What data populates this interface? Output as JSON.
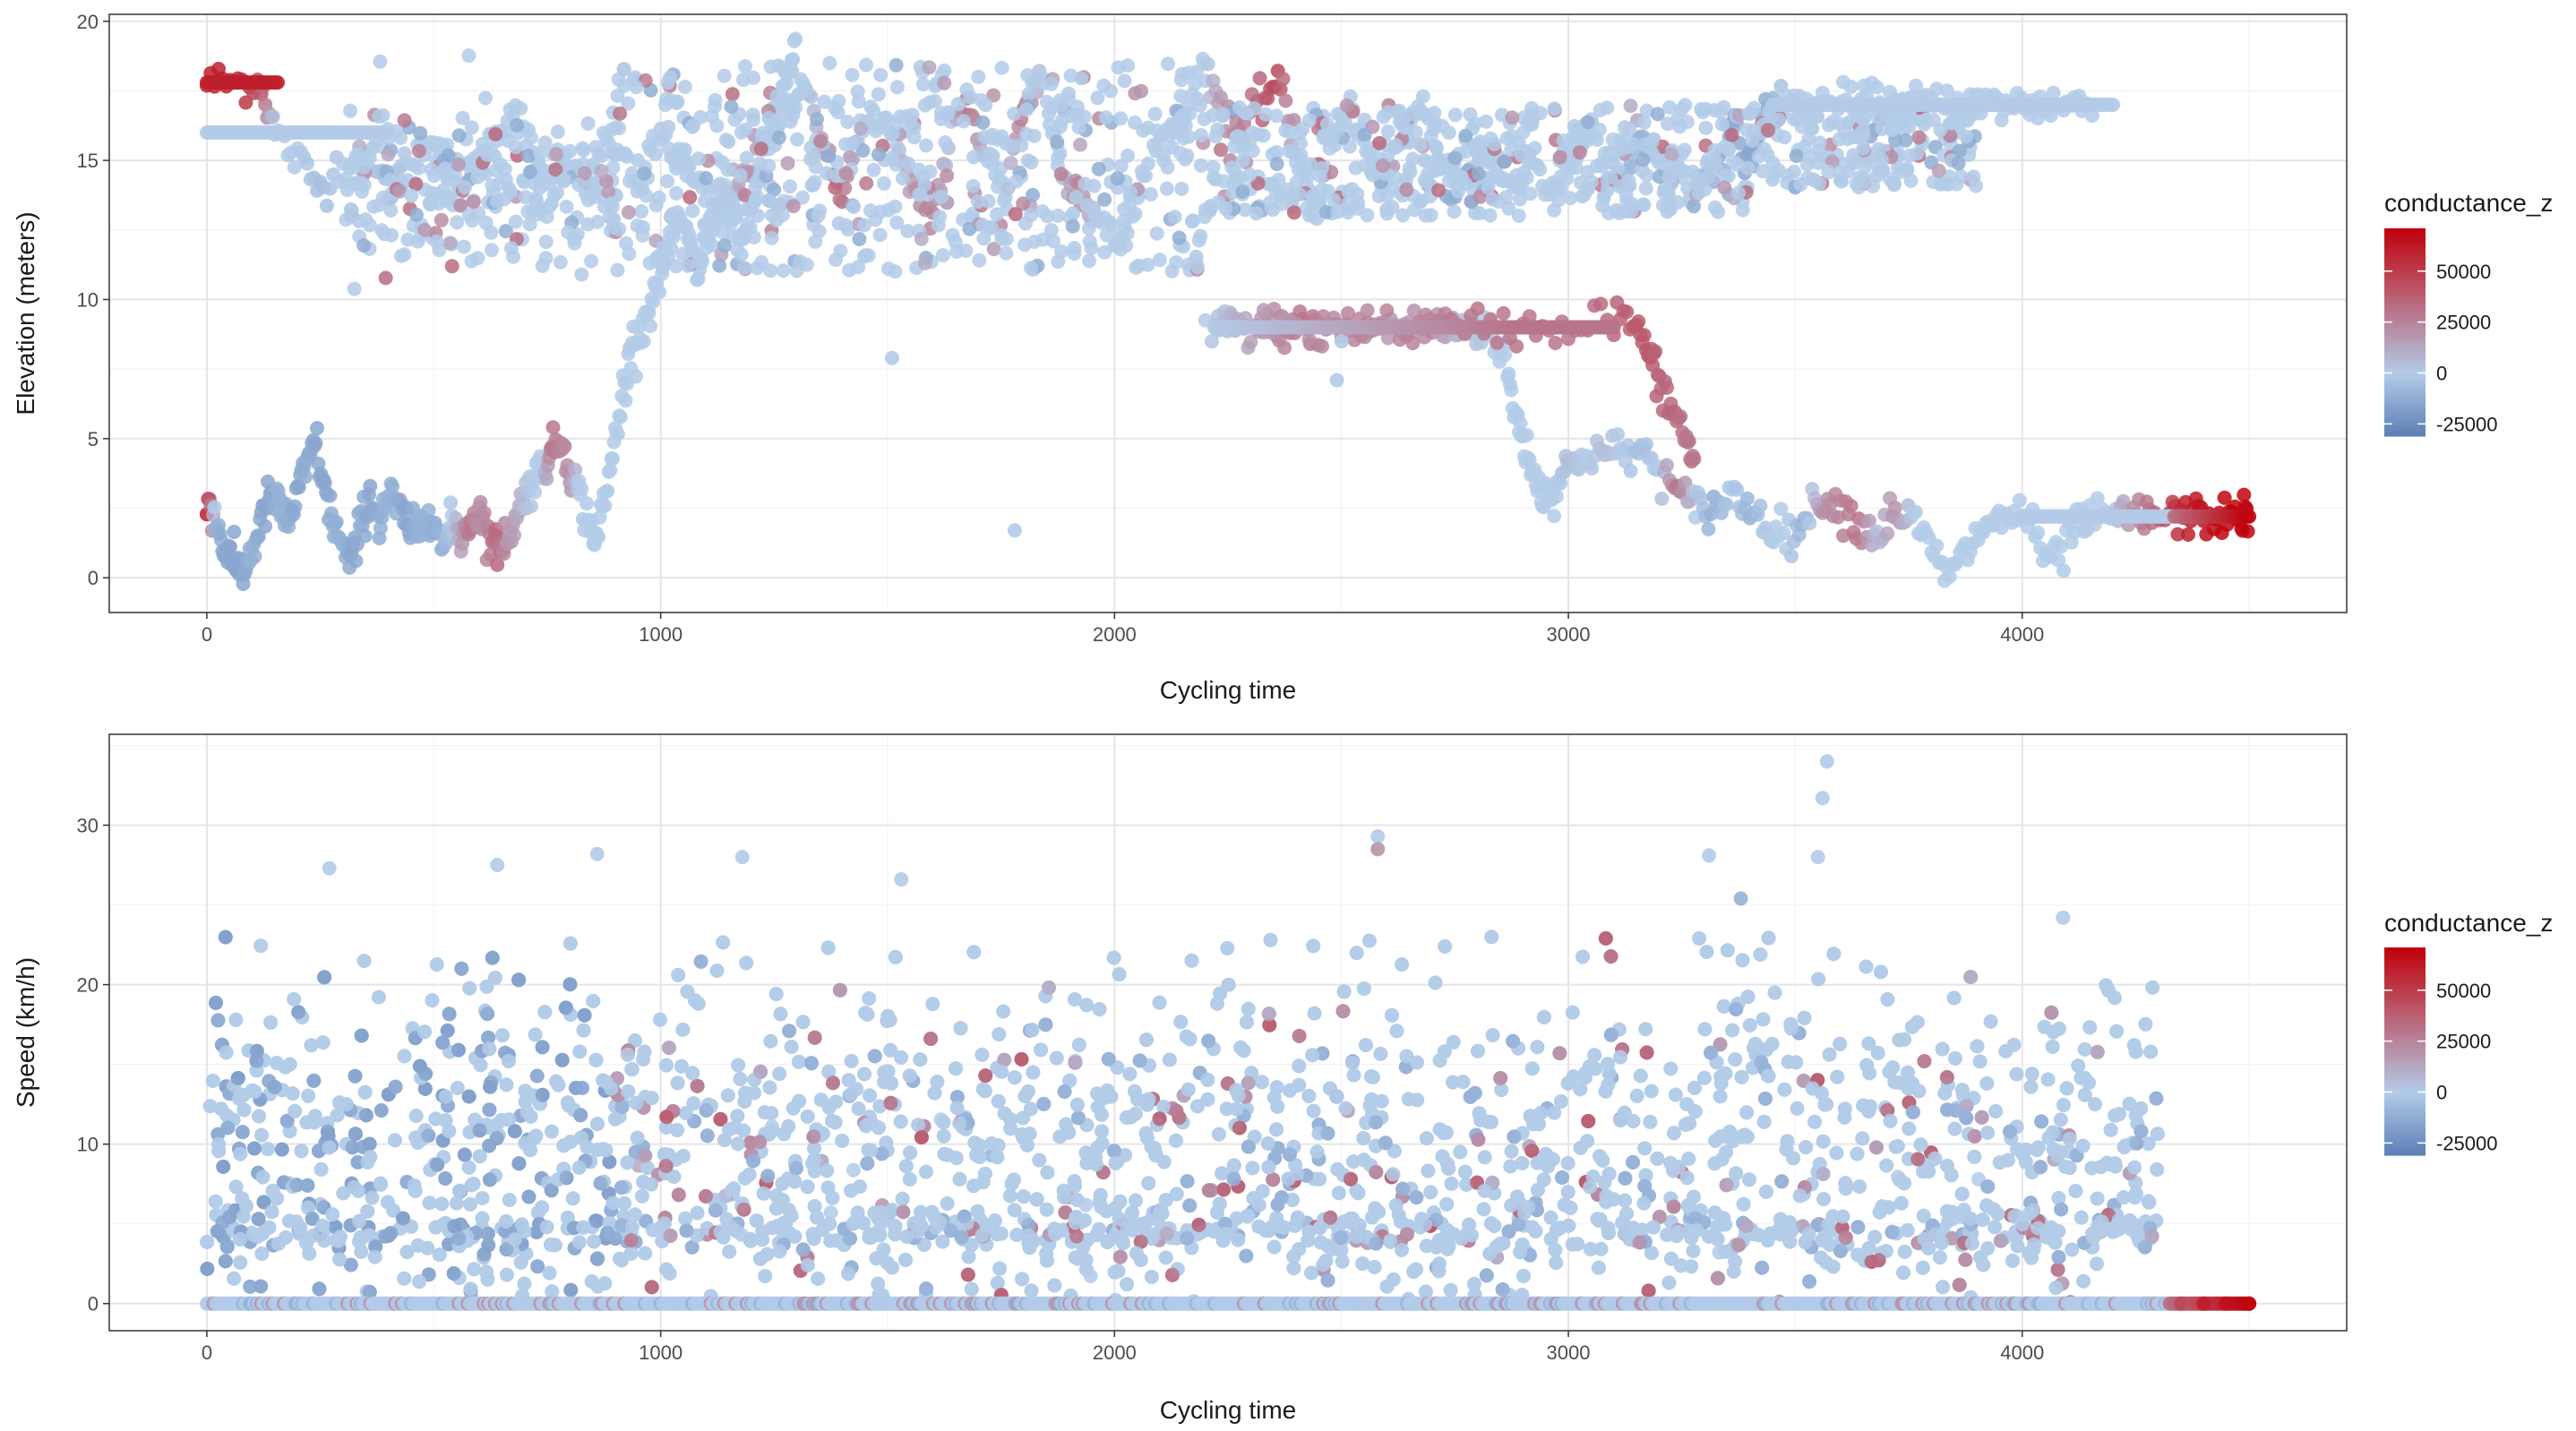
{
  "chart_data": [
    {
      "type": "scatter",
      "title": "",
      "xlabel": "Cycling time",
      "ylabel": "Elevation (meters)",
      "xlim": [
        -215,
        4715
      ],
      "ylim": [
        -1.25,
        20.25
      ],
      "x_ticks": [
        0,
        1000,
        2000,
        3000,
        4000
      ],
      "x_tick_labels": [
        "0",
        "1000",
        "2000",
        "3000",
        "4000"
      ],
      "y_ticks": [
        0,
        5,
        10,
        15,
        20
      ],
      "y_tick_labels": [
        "0",
        "5",
        "10",
        "15",
        "20"
      ],
      "grid": true,
      "color_by": "conductance_z",
      "color_scale": {
        "title": "conductance_z",
        "low_color": "#5c7fb5",
        "mid_color": "#b3cbe8",
        "high_color": "#c0000a",
        "limits": [
          -31000,
          71000
        ],
        "breaks": [
          50000,
          25000,
          0,
          -25000
        ],
        "break_labels": [
          "50000",
          "25000",
          "0",
          "-25000"
        ]
      },
      "series": [
        {
          "x": [
            0,
            60,
            120,
            150,
            200,
            250,
            300,
            350,
            400,
            450,
            500,
            520,
            560,
            600,
            640,
            680,
            720,
            760,
            800,
            840,
            880,
            920,
            960,
            1000,
            1040,
            1080,
            1120,
            1160,
            1200,
            1240,
            1280,
            1320,
            1360,
            1400,
            1440,
            1480,
            1520,
            1560,
            1600,
            1640,
            1680,
            1720,
            1760,
            1800,
            1840,
            1880,
            1920,
            1960,
            2000,
            2040,
            2080,
            2120,
            2160,
            2200,
            2240,
            2280,
            2320,
            2360,
            2400,
            2440,
            2480,
            2520,
            2560,
            2600,
            2640,
            2680,
            2720,
            2760,
            2800,
            2840,
            2880,
            2920,
            2960,
            3000,
            3040,
            3080,
            3120,
            3160,
            3200,
            3240,
            3280,
            3320,
            3360,
            3400,
            3440,
            3480,
            3520,
            3560,
            3600,
            3640,
            3680,
            3720,
            3760,
            3800,
            3840,
            3880,
            3920,
            3960,
            4000,
            4040,
            4080,
            4120,
            4160,
            4200,
            4240,
            4280,
            4320,
            4360,
            4400,
            4440,
            4480,
            4500
          ],
          "y": [
            17.8,
            17.8,
            17.8,
            16,
            15,
            14,
            15,
            15,
            14,
            15,
            16,
            15,
            14,
            15,
            16,
            17,
            15,
            14,
            15,
            14,
            16,
            15,
            14,
            16,
            15,
            14,
            13,
            14,
            15,
            16,
            17,
            18,
            15,
            14,
            16,
            17,
            15,
            14,
            13,
            16,
            17,
            15,
            14,
            17,
            18,
            15,
            14,
            13,
            12,
            13,
            15,
            16,
            17,
            18,
            17,
            16,
            17,
            18,
            15,
            13,
            16,
            17,
            15,
            14,
            16,
            17,
            15,
            14,
            16,
            15,
            14,
            15,
            14,
            15,
            16,
            15,
            14,
            16,
            15,
            15,
            14,
            15,
            16,
            15,
            17,
            17,
            17,
            17,
            17,
            17,
            17,
            17,
            17,
            17,
            17,
            17,
            17,
            17,
            17,
            17,
            17,
            17,
            17,
            null,
            null,
            null,
            null,
            null,
            null,
            null,
            null,
            null
          ],
          "z": [
            60000,
            60000,
            40000,
            0,
            0,
            -5000,
            0,
            0,
            -5000,
            0,
            0,
            0,
            0,
            0,
            0,
            0,
            0,
            0,
            0,
            0,
            0,
            0,
            0,
            0,
            0,
            0,
            0,
            10000,
            20000,
            0,
            0,
            0,
            15000,
            30000,
            0,
            0,
            0,
            20000,
            25000,
            0,
            30000,
            0,
            0,
            30000,
            0,
            0,
            25000,
            0,
            0,
            0,
            0,
            0,
            0,
            0,
            20000,
            25000,
            35000,
            45000,
            0,
            0,
            0,
            0,
            0,
            0,
            0,
            0,
            0,
            0,
            0,
            0,
            0,
            0,
            0,
            0,
            0,
            0,
            -5000,
            -10000,
            0,
            0,
            0,
            -10000,
            -12000,
            -15000,
            -12000,
            0,
            0,
            0,
            0,
            0,
            0,
            0,
            0,
            0,
            0,
            0,
            0,
            0,
            0,
            0,
            0,
            0,
            0,
            null,
            null,
            null,
            null,
            null,
            null,
            null,
            null,
            null
          ]
        },
        {
          "x": [
            0,
            20,
            40,
            60,
            80,
            100,
            120,
            140,
            160,
            180,
            200,
            220,
            240,
            260,
            280,
            300,
            320,
            340,
            360,
            380,
            400,
            420,
            440,
            460,
            480,
            500,
            520,
            540,
            560,
            580,
            600,
            620,
            640,
            660,
            680,
            700,
            720,
            740,
            760,
            780,
            800,
            820,
            840,
            860,
            880,
            900,
            920,
            940,
            960,
            980,
            1000,
            1020,
            1040,
            1060,
            1080,
            1100,
            1120,
            1140,
            1160,
            1180,
            1200,
            1220,
            1240,
            1260,
            1280,
            1300
          ],
          "y": [
            3,
            2,
            1,
            0.5,
            0.2,
            1,
            2,
            3,
            2.5,
            2,
            3,
            4,
            5,
            3,
            2,
            1,
            0.5,
            2,
            3,
            2,
            3,
            2.5,
            2,
            1.5,
            2,
            2.5,
            1,
            2,
            1.5,
            2,
            2.5,
            1.5,
            1,
            1.5,
            2,
            3,
            3.5,
            4,
            4.5,
            5,
            4,
            3,
            2,
            1.5,
            3,
            5,
            7,
            8.5,
            9,
            10,
            11,
            12,
            13,
            12,
            11,
            12,
            13,
            14,
            13,
            12,
            13,
            15,
            16,
            17,
            18,
            19
          ],
          "z": [
            60000,
            -10000,
            -15000,
            -15000,
            -15000,
            -10000,
            -15000,
            -15000,
            -10000,
            -12000,
            -15000,
            -12000,
            -15000,
            -15000,
            -12000,
            -10000,
            -15000,
            -12000,
            -15000,
            -12000,
            -10000,
            -12000,
            -15000,
            -12000,
            -10000,
            -12000,
            -10000,
            0,
            15000,
            30000,
            20000,
            25000,
            35000,
            20000,
            15000,
            5000,
            0,
            0,
            30000,
            25000,
            20000,
            0,
            0,
            0,
            0,
            0,
            0,
            0,
            0,
            0,
            0,
            0,
            0,
            0,
            0,
            0,
            0,
            0,
            0,
            0,
            0,
            0,
            0,
            0,
            0,
            0
          ]
        },
        {
          "x": [
            2220,
            2260,
            2300,
            2340,
            2380,
            2420,
            2460,
            2500,
            2540,
            2580,
            2620,
            2660,
            2700,
            2740,
            2780,
            2820,
            2860,
            2880,
            2900,
            2920,
            2940,
            2960,
            2980,
            3000,
            3040,
            3080,
            3120,
            3160,
            3200,
            3240,
            3280,
            3320,
            3360,
            3400,
            3440,
            3480,
            3520,
            3560,
            3600,
            3640,
            3680,
            3720,
            3760,
            3800,
            3840,
            3880,
            3920,
            3960,
            4000,
            4040,
            4080,
            4120,
            4160,
            4200,
            4240,
            4280,
            4320,
            4360,
            4400,
            4440,
            4480,
            4500
          ],
          "y": [
            9,
            9,
            9,
            9,
            9,
            9,
            9,
            9,
            9,
            9,
            9,
            9,
            9,
            9,
            9,
            9,
            8,
            6,
            5,
            4,
            3,
            3,
            3.5,
            4,
            4.5,
            4.5,
            4.5,
            4.5,
            4,
            3,
            2.5,
            2.5,
            3,
            2.5,
            2,
            1.5,
            2,
            3,
            2.5,
            2,
            1.5,
            2.5,
            2,
            1,
            0,
            1,
            2,
            2,
            2.5,
            1,
            0.5,
            2,
            2,
            2.2,
            2.2,
            2.2,
            2.2,
            2.2,
            2.2,
            2.2,
            2.2,
            2.2
          ],
          "z": [
            0,
            5000,
            15000,
            20000,
            25000,
            30000,
            25000,
            20000,
            25000,
            20000,
            15000,
            20000,
            25000,
            10000,
            5000,
            0,
            0,
            0,
            0,
            0,
            0,
            0,
            0,
            5000,
            0,
            5000,
            0,
            -5000,
            0,
            30000,
            0,
            -12000,
            0,
            -10000,
            0,
            0,
            -10000,
            20000,
            25000,
            30000,
            5000,
            20000,
            0,
            0,
            0,
            0,
            0,
            0,
            0,
            0,
            0,
            0,
            0,
            0,
            20000,
            30000,
            45000,
            60000,
            65000,
            70000,
            70000,
            70000
          ]
        },
        {
          "x": [
            2200,
            2300,
            2400,
            2500,
            2600,
            2700,
            2800,
            2900,
            3000,
            3100,
            3150,
            3180,
            3200,
            3230,
            3260,
            3280
          ],
          "y": [
            9,
            9,
            9,
            9,
            9,
            9,
            9,
            9,
            9,
            9.5,
            9,
            8,
            7,
            6,
            5,
            4
          ],
          "z": [
            0,
            15000,
            20000,
            25000,
            25000,
            25000,
            30000,
            30000,
            30000,
            35000,
            40000,
            40000,
            35000,
            35000,
            30000,
            30000
          ]
        }
      ],
      "isolated_points": [
        {
          "x": 1510,
          "y": 7.9,
          "z": 0
        },
        {
          "x": 1780,
          "y": 1.7,
          "z": 0
        },
        {
          "x": 2500,
          "y": 8.5,
          "z": 0
        },
        {
          "x": 2490,
          "y": 7.1,
          "z": 0
        }
      ]
    },
    {
      "type": "scatter",
      "title": "",
      "xlabel": "Cycling time",
      "ylabel": "Speed (km/h)",
      "xlim": [
        -215,
        4715
      ],
      "ylim": [
        -1.7,
        35.7
      ],
      "x_ticks": [
        0,
        1000,
        2000,
        3000,
        4000
      ],
      "x_tick_labels": [
        "0",
        "1000",
        "2000",
        "3000",
        "4000"
      ],
      "y_ticks": [
        0,
        10,
        20,
        30
      ],
      "y_tick_labels": [
        "0",
        "10",
        "20",
        "30"
      ],
      "grid": true,
      "color_by": "conductance_z",
      "color_scale": {
        "title": "conductance_z",
        "low_color": "#5c7fb5",
        "mid_color": "#b3cbe8",
        "high_color": "#c0000a",
        "limits": [
          -31000,
          71000
        ],
        "breaks": [
          50000,
          25000,
          0,
          -25000
        ],
        "break_labels": [
          "50000",
          "25000",
          "0",
          "-25000"
        ]
      },
      "time_range": [
        0,
        4300
      ],
      "zero_speed_band": {
        "x_from": 0,
        "x_to": 4500,
        "y": 0
      },
      "typical_speed_range": [
        0,
        22
      ],
      "dense_band_y": 4.5,
      "outliers": [
        {
          "x": 3570,
          "y": 34,
          "z": 0
        },
        {
          "x": 3560,
          "y": 31.7,
          "z": 0
        },
        {
          "x": 3550,
          "y": 28,
          "z": 0
        },
        {
          "x": 2580,
          "y": 29.3,
          "z": 0
        },
        {
          "x": 2580,
          "y": 28.5,
          "z": 20000
        },
        {
          "x": 860,
          "y": 28.2,
          "z": 0
        },
        {
          "x": 270,
          "y": 27.3,
          "z": 0
        },
        {
          "x": 640,
          "y": 27.5,
          "z": 0
        },
        {
          "x": 3310,
          "y": 28.1,
          "z": 0
        },
        {
          "x": 1180,
          "y": 28,
          "z": 0
        },
        {
          "x": 1530,
          "y": 26.6,
          "z": 0
        },
        {
          "x": 3380,
          "y": 25.4,
          "z": -10000
        },
        {
          "x": 4090,
          "y": 24.2,
          "z": 0
        }
      ],
      "tail_points": [
        {
          "x": 4350,
          "y": 0,
          "z": 45000
        },
        {
          "x": 4400,
          "y": 0,
          "z": 60000
        },
        {
          "x": 4450,
          "y": 0,
          "z": 65000
        },
        {
          "x": 4500,
          "y": 0,
          "z": 70000
        }
      ]
    }
  ]
}
